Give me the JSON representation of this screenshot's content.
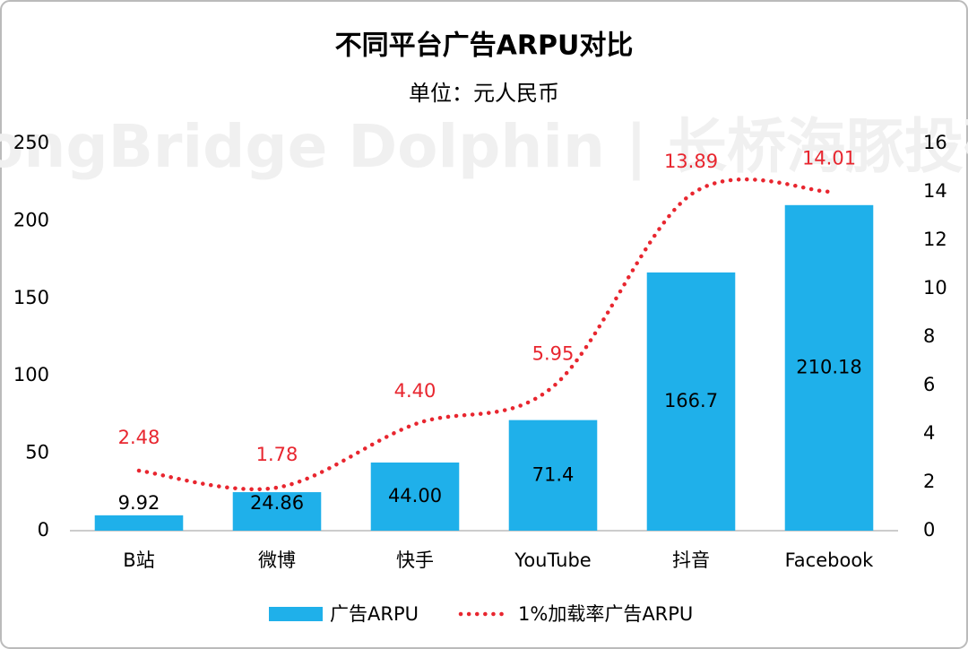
{
  "chart_data": {
    "type": "bar",
    "title": "不同平台广告ARPU对比",
    "subtitle": "单位：元人民币",
    "watermark": "LongBridge Dolphin | 长桥海豚投研",
    "categories": [
      "B站",
      "微博",
      "快手",
      "YouTube",
      "抖音",
      "Facebook"
    ],
    "series": [
      {
        "name": "广告ARPU",
        "type": "bar",
        "color": "#1fb0ea",
        "axis": "y",
        "values": [
          9.92,
          24.86,
          44.0,
          71.4,
          166.7,
          210.18
        ],
        "value_labels": [
          "9.92",
          "24.86",
          "44.00",
          "71.4",
          "166.7",
          "210.18"
        ]
      },
      {
        "name": "1%加载率广告ARPU",
        "type": "line",
        "color": "#e8262f",
        "axis": "y2",
        "values": [
          2.48,
          1.78,
          4.4,
          5.95,
          13.89,
          14.01
        ],
        "value_labels": [
          "2.48",
          "1.78",
          "4.40",
          "5.95",
          "13.89",
          "14.01"
        ]
      }
    ],
    "ylim": [
      0,
      250
    ],
    "yticks": [
      0,
      50,
      100,
      150,
      200,
      250
    ],
    "y2lim": [
      0,
      16
    ],
    "y2ticks": [
      0,
      2,
      4,
      6,
      8,
      10,
      12,
      14,
      16
    ],
    "grid": false,
    "legend": "bottom"
  }
}
